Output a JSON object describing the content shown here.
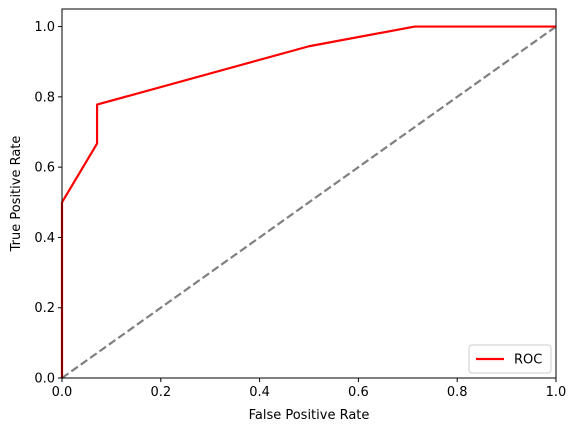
{
  "chart_data": {
    "type": "line",
    "title": "",
    "xlabel": "False Positive Rate",
    "ylabel": "True Positive Rate",
    "xlim": [
      0.0,
      1.0
    ],
    "ylim": [
      0.0,
      1.05
    ],
    "xticks": [
      0.0,
      0.2,
      0.4,
      0.6,
      0.8,
      1.0
    ],
    "xtick_labels": [
      "0.0",
      "0.2",
      "0.4",
      "0.6",
      "0.8",
      "1.0"
    ],
    "yticks": [
      0.0,
      0.2,
      0.4,
      0.6,
      0.8,
      1.0
    ],
    "ytick_labels": [
      "0.0",
      "0.2",
      "0.4",
      "0.6",
      "0.8",
      "1.0"
    ],
    "grid": false,
    "legend": {
      "placement": "lower-right",
      "entries": [
        "ROC"
      ]
    },
    "series": [
      {
        "name": "ROC",
        "color": "#ff0000",
        "style": "solid",
        "x": [
          0.0,
          0.0,
          0.0,
          0.071,
          0.071,
          0.5,
          0.714,
          1.0
        ],
        "y": [
          0.0,
          0.5,
          0.5,
          0.667,
          0.778,
          0.944,
          1.0,
          1.0
        ]
      },
      {
        "color": "#808080",
        "style": "dashed",
        "x": [
          0.0,
          1.0
        ],
        "y": [
          0.0,
          1.0
        ]
      }
    ]
  }
}
